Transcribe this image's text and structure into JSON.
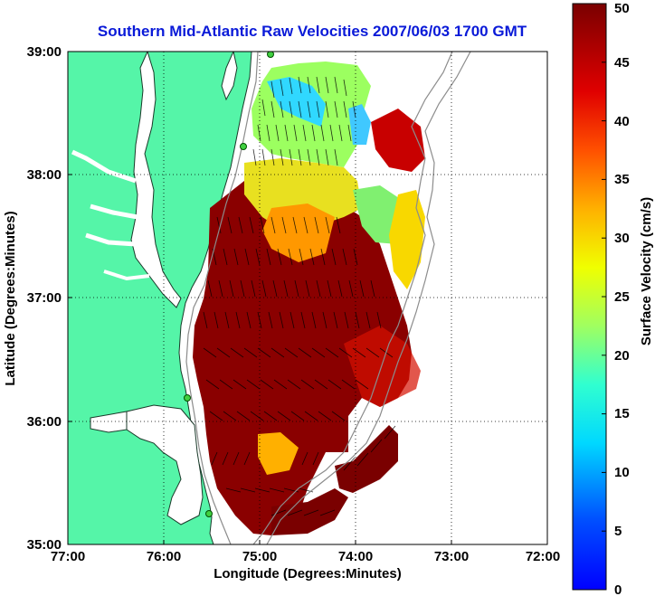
{
  "title": "Southern Mid-Atlantic Raw Velocities 2007/06/03 1700 GMT",
  "xlabel": "Longitude (Degrees:Minutes)",
  "ylabel": "Latitude (Degrees:Minutes)",
  "x_ticks": [
    "77:00",
    "76:00",
    "75:00",
    "74:00",
    "73:00",
    "72:00"
  ],
  "y_ticks": [
    "39:00",
    "38:00",
    "37:00",
    "36:00",
    "35:00"
  ],
  "colorbar": {
    "label": "Surface Velocity (cm/s)",
    "ticks": [
      "0",
      "5",
      "10",
      "15",
      "20",
      "25",
      "30",
      "35",
      "40",
      "45",
      "50"
    ],
    "range": [
      0,
      50
    ],
    "colormap": "jet"
  },
  "map": {
    "lon_range": [
      -77,
      -72
    ],
    "lat_range": [
      35,
      39
    ],
    "grid": "dotted",
    "land_color": "#55f5a8",
    "water_color": "#ffffff",
    "stations": [
      {
        "lon": -74.9,
        "lat": 38.98
      },
      {
        "lon": -75.1,
        "lat": 38.25
      },
      {
        "lon": -75.62,
        "lat": 36.18
      },
      {
        "lon": -75.47,
        "lat": 35.26
      }
    ]
  }
}
